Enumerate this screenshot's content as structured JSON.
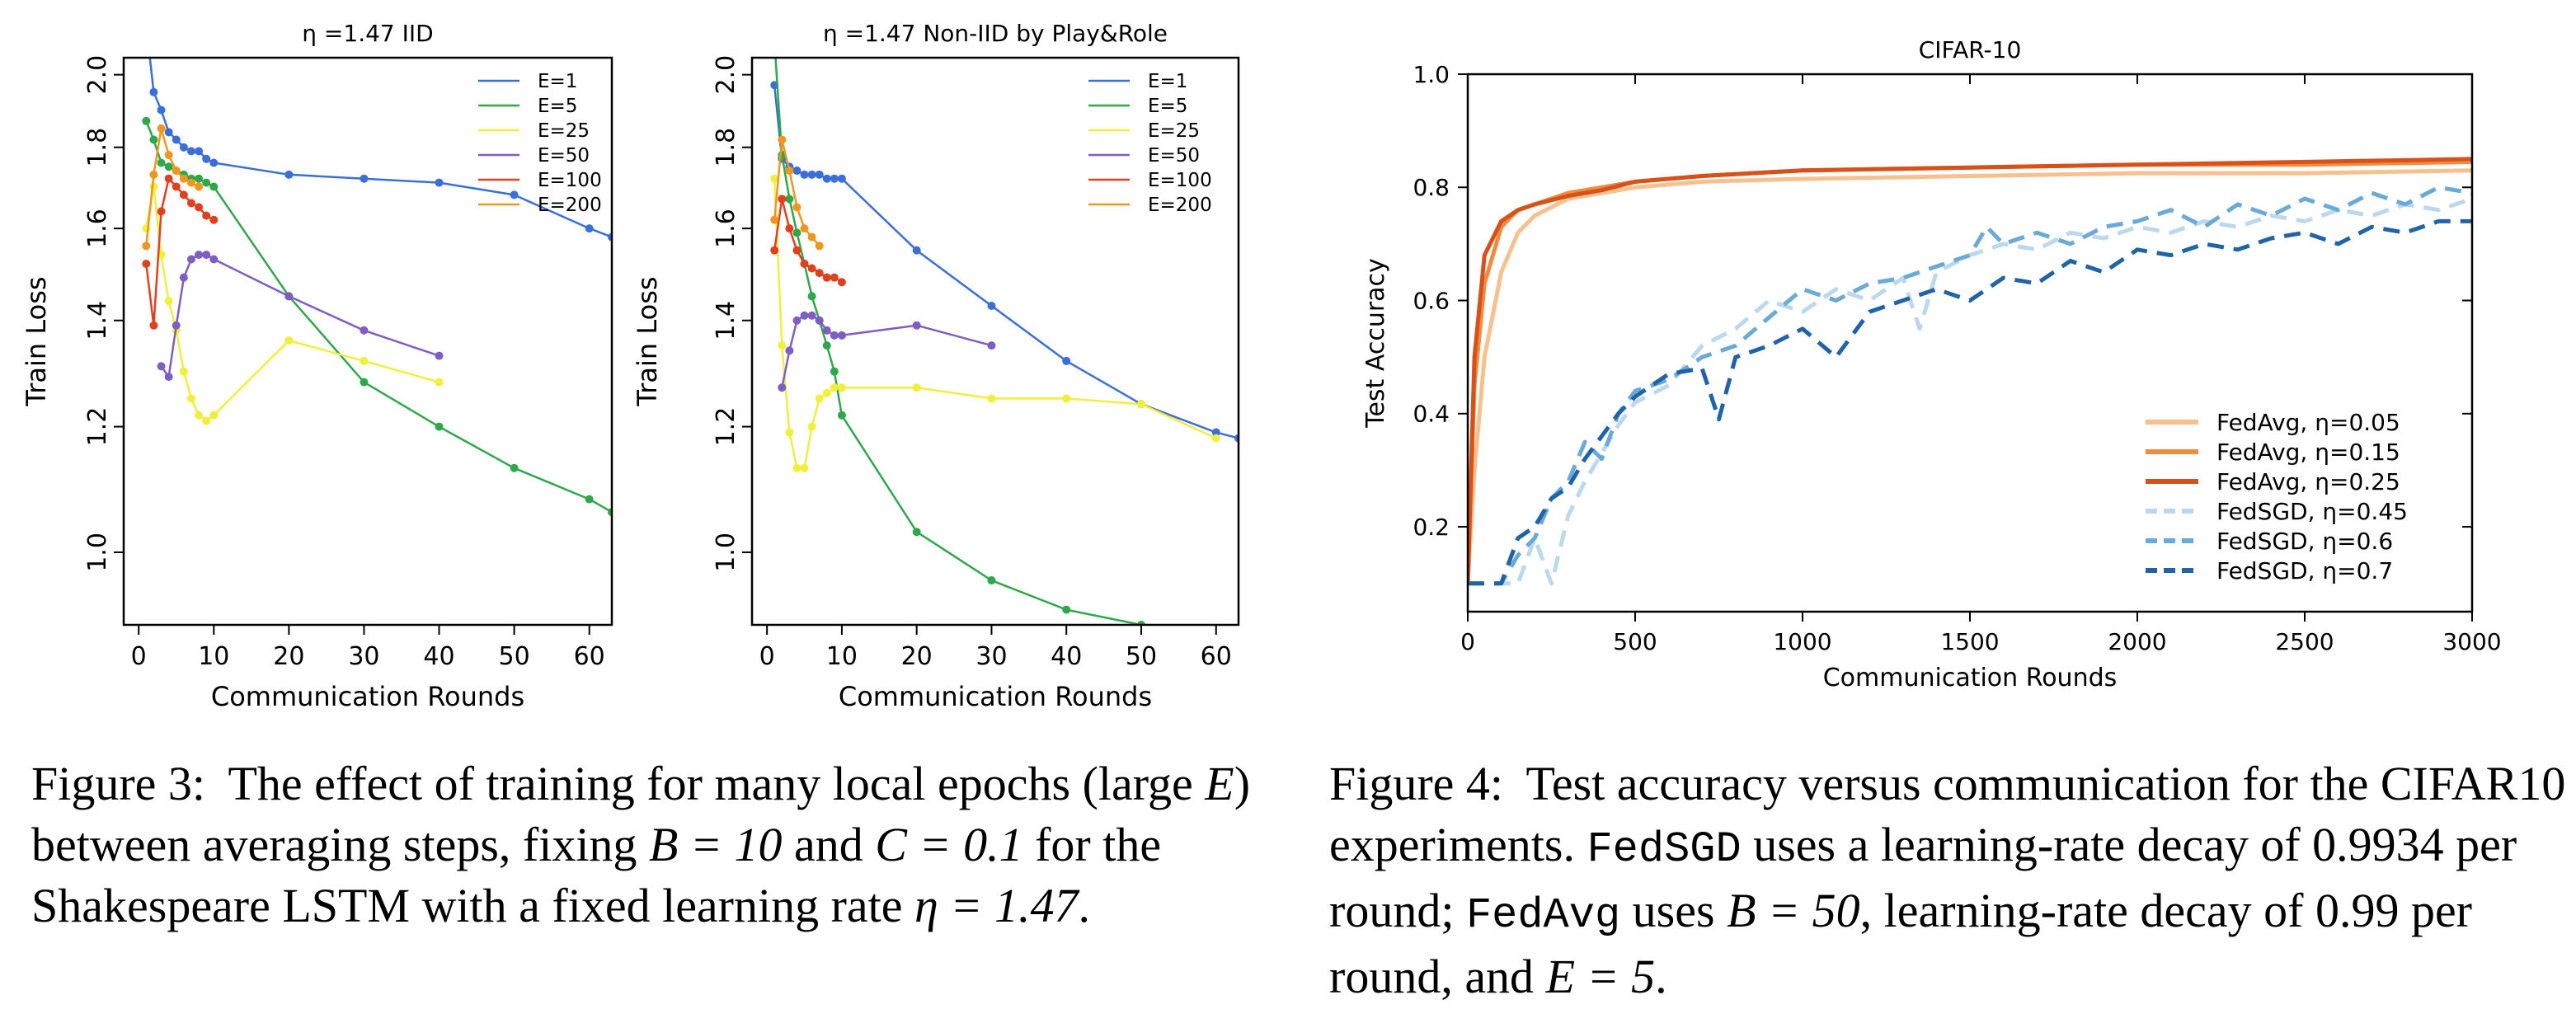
{
  "figure3": {
    "caption": {
      "label": "Figure 3:",
      "text1": " The effect of training for many local epochs (large ",
      "E": "E",
      "text2": ") between averaging steps, fixing ",
      "B_eq": "B = 10",
      "text3": " and ",
      "C_eq": "C = 0.1",
      "text4": " for the Shakespeare LSTM with a fixed learning rate ",
      "eta_eq": "η = 1.47",
      "text5": "."
    }
  },
  "figure4": {
    "caption": {
      "label": "Figure 4:",
      "text1": " Test accuracy versus communication for the CIFAR10 experiments. ",
      "fedsgd": "FedSGD",
      "text2": " uses a learning-rate decay of 0.9934 per round; ",
      "fedavg": "FedAvg",
      "text3": " uses ",
      "B_eq": "B = 50",
      "text4": ", learning-rate decay of 0.99 per round, and ",
      "E_eq": "E = 5",
      "text5": "."
    }
  },
  "chart_data": [
    {
      "type": "line",
      "title": "η =1.47 IID",
      "xlabel": "Communication Rounds",
      "ylabel": "Train Loss",
      "xlim": [
        -2,
        63
      ],
      "ylim": [
        0.9,
        2.05
      ],
      "yscale": "log",
      "xticks": [
        0,
        10,
        20,
        30,
        40,
        50,
        60
      ],
      "yticks": [
        1.0,
        1.2,
        1.4,
        1.6,
        1.8,
        2.0
      ],
      "legend_position": "top-right",
      "series": [
        {
          "name": "E=1",
          "color": "#3a6fd9",
          "x": [
            1,
            2,
            3,
            4,
            5,
            6,
            7,
            8,
            9,
            10,
            20,
            30,
            40,
            50,
            60,
            63
          ],
          "y": [
            2.15,
            1.95,
            1.9,
            1.84,
            1.82,
            1.8,
            1.79,
            1.79,
            1.77,
            1.76,
            1.73,
            1.72,
            1.71,
            1.68,
            1.6,
            1.58
          ]
        },
        {
          "name": "E=5",
          "color": "#2fa84a",
          "x": [
            1,
            2,
            3,
            4,
            5,
            6,
            7,
            8,
            9,
            10,
            20,
            30,
            40,
            50,
            60,
            63
          ],
          "y": [
            1.87,
            1.82,
            1.76,
            1.75,
            1.74,
            1.73,
            1.72,
            1.72,
            1.71,
            1.7,
            1.45,
            1.28,
            1.2,
            1.13,
            1.08,
            1.06
          ]
        },
        {
          "name": "E=25",
          "color": "#f2ef3a",
          "x": [
            1,
            2,
            3,
            4,
            5,
            6,
            7,
            8,
            9,
            10,
            20,
            30,
            40
          ],
          "y": [
            1.6,
            1.7,
            1.54,
            1.44,
            1.38,
            1.3,
            1.25,
            1.22,
            1.21,
            1.22,
            1.36,
            1.32,
            1.28
          ]
        },
        {
          "name": "E=50",
          "color": "#7e5ec4",
          "x": [
            3,
            4,
            5,
            6,
            7,
            8,
            9,
            10,
            20,
            30,
            40
          ],
          "y": [
            1.31,
            1.29,
            1.39,
            1.49,
            1.53,
            1.54,
            1.54,
            1.53,
            1.45,
            1.38,
            1.33
          ]
        },
        {
          "name": "E=100",
          "color": "#e0401e",
          "x": [
            1,
            2,
            3,
            4,
            5,
            6,
            7,
            8,
            9,
            10
          ],
          "y": [
            1.52,
            1.39,
            1.64,
            1.72,
            1.7,
            1.68,
            1.66,
            1.65,
            1.63,
            1.62
          ]
        },
        {
          "name": "E=200",
          "color": "#f0961e",
          "x": [
            1,
            2,
            3,
            4,
            5,
            6,
            7,
            8
          ],
          "y": [
            1.56,
            1.73,
            1.85,
            1.78,
            1.74,
            1.72,
            1.71,
            1.7
          ]
        }
      ]
    },
    {
      "type": "line",
      "title": "η =1.47 Non-IID by Play&Role",
      "xlabel": "Communication Rounds",
      "ylabel": "Train Loss",
      "xlim": [
        -2,
        63
      ],
      "ylim": [
        0.9,
        2.05
      ],
      "yscale": "log",
      "xticks": [
        0,
        10,
        20,
        30,
        40,
        50,
        60
      ],
      "yticks": [
        1.0,
        1.2,
        1.4,
        1.6,
        1.8,
        2.0
      ],
      "legend_position": "top-right",
      "series": [
        {
          "name": "E=1",
          "color": "#3a6fd9",
          "x": [
            1,
            2,
            3,
            4,
            5,
            6,
            7,
            8,
            9,
            10,
            20,
            30,
            40,
            50,
            60,
            63
          ],
          "y": [
            1.97,
            1.77,
            1.75,
            1.74,
            1.73,
            1.73,
            1.73,
            1.72,
            1.72,
            1.72,
            1.55,
            1.43,
            1.32,
            1.24,
            1.19,
            1.18
          ]
        },
        {
          "name": "E=5",
          "color": "#2fa84a",
          "x": [
            1,
            2,
            3,
            4,
            5,
            6,
            7,
            8,
            9,
            10,
            20,
            30,
            40,
            50
          ],
          "y": [
            2.1,
            1.78,
            1.67,
            1.59,
            1.52,
            1.45,
            1.4,
            1.35,
            1.3,
            1.22,
            1.03,
            0.96,
            0.92,
            0.9
          ]
        },
        {
          "name": "E=25",
          "color": "#f2ef3a",
          "x": [
            1,
            2,
            3,
            4,
            5,
            6,
            7,
            8,
            9,
            10,
            20,
            30,
            40,
            50,
            60
          ],
          "y": [
            1.72,
            1.35,
            1.19,
            1.13,
            1.13,
            1.2,
            1.25,
            1.26,
            1.27,
            1.27,
            1.27,
            1.25,
            1.25,
            1.24,
            1.18
          ]
        },
        {
          "name": "E=50",
          "color": "#7e5ec4",
          "x": [
            2,
            3,
            4,
            5,
            6,
            7,
            8,
            9,
            10,
            20,
            30
          ],
          "y": [
            1.27,
            1.34,
            1.4,
            1.41,
            1.41,
            1.4,
            1.38,
            1.37,
            1.37,
            1.39,
            1.35
          ]
        },
        {
          "name": "E=100",
          "color": "#e0401e",
          "x": [
            1,
            2,
            3,
            4,
            5,
            6,
            7,
            8,
            9,
            10
          ],
          "y": [
            1.55,
            1.67,
            1.6,
            1.55,
            1.52,
            1.51,
            1.5,
            1.49,
            1.49,
            1.48
          ]
        },
        {
          "name": "E=200",
          "color": "#f0961e",
          "x": [
            1,
            2,
            3,
            4,
            5,
            6,
            7
          ],
          "y": [
            1.62,
            1.82,
            1.74,
            1.65,
            1.6,
            1.58,
            1.56
          ]
        }
      ]
    },
    {
      "type": "line",
      "title": "CIFAR-10",
      "xlabel": "Communication Rounds",
      "ylabel": "Test Accuracy",
      "xlim": [
        0,
        3000
      ],
      "ylim": [
        0.05,
        1.0
      ],
      "xticks": [
        0,
        500,
        1000,
        1500,
        2000,
        2500,
        3000
      ],
      "yticks": [
        0.2,
        0.4,
        0.6,
        0.8,
        1.0
      ],
      "legend_position": "bottom-right",
      "series": [
        {
          "name": "FedAvg, η=0.05",
          "color": "#f7c08e",
          "dash": false,
          "x": [
            0,
            20,
            50,
            100,
            150,
            200,
            300,
            400,
            500,
            700,
            1000,
            1500,
            2000,
            2500,
            3000
          ],
          "y": [
            0.1,
            0.3,
            0.5,
            0.65,
            0.72,
            0.75,
            0.78,
            0.79,
            0.8,
            0.81,
            0.815,
            0.82,
            0.825,
            0.825,
            0.83
          ]
        },
        {
          "name": "FedAvg, η=0.15",
          "color": "#f08c3e",
          "dash": false,
          "x": [
            0,
            20,
            50,
            100,
            150,
            200,
            300,
            400,
            500,
            700,
            1000,
            1500,
            2000,
            2500,
            3000
          ],
          "y": [
            0.1,
            0.45,
            0.63,
            0.73,
            0.76,
            0.77,
            0.79,
            0.8,
            0.81,
            0.82,
            0.83,
            0.835,
            0.84,
            0.84,
            0.845
          ]
        },
        {
          "name": "FedAvg, η=0.25",
          "color": "#d8501a",
          "dash": false,
          "x": [
            0,
            20,
            50,
            100,
            150,
            200,
            300,
            400,
            500,
            700,
            1000,
            1500,
            2000,
            2500,
            3000
          ],
          "y": [
            0.1,
            0.5,
            0.68,
            0.74,
            0.76,
            0.77,
            0.785,
            0.795,
            0.81,
            0.82,
            0.83,
            0.835,
            0.84,
            0.845,
            0.85
          ]
        },
        {
          "name": "FedSGD, η=0.45",
          "color": "#bcd8ee",
          "dash": true,
          "x": [
            0,
            100,
            150,
            200,
            250,
            300,
            350,
            400,
            450,
            500,
            600,
            700,
            800,
            900,
            1000,
            1100,
            1200,
            1300,
            1350,
            1400,
            1500,
            1600,
            1700,
            1800,
            1900,
            2000,
            2100,
            2200,
            2300,
            2400,
            2500,
            2600,
            2700,
            2800,
            2900,
            3000
          ],
          "y": [
            0.1,
            0.1,
            0.1,
            0.18,
            0.1,
            0.22,
            0.28,
            0.33,
            0.38,
            0.42,
            0.45,
            0.52,
            0.55,
            0.6,
            0.58,
            0.62,
            0.6,
            0.64,
            0.55,
            0.65,
            0.68,
            0.7,
            0.69,
            0.72,
            0.71,
            0.73,
            0.72,
            0.74,
            0.73,
            0.75,
            0.74,
            0.76,
            0.75,
            0.77,
            0.76,
            0.78
          ]
        },
        {
          "name": "FedSGD, η=0.6",
          "color": "#6aaad8",
          "dash": true,
          "x": [
            0,
            100,
            150,
            200,
            250,
            300,
            350,
            400,
            450,
            500,
            600,
            700,
            800,
            900,
            1000,
            1100,
            1200,
            1300,
            1400,
            1500,
            1550,
            1600,
            1700,
            1800,
            1900,
            2000,
            2100,
            2200,
            2300,
            2400,
            2500,
            2600,
            2700,
            2800,
            2900,
            3000
          ],
          "y": [
            0.1,
            0.1,
            0.15,
            0.18,
            0.25,
            0.28,
            0.35,
            0.32,
            0.4,
            0.44,
            0.46,
            0.5,
            0.52,
            0.57,
            0.62,
            0.6,
            0.63,
            0.64,
            0.66,
            0.68,
            0.73,
            0.7,
            0.72,
            0.7,
            0.73,
            0.74,
            0.76,
            0.73,
            0.77,
            0.75,
            0.78,
            0.76,
            0.79,
            0.77,
            0.8,
            0.79
          ]
        },
        {
          "name": "FedSGD, η=0.7",
          "color": "#1f64a8",
          "dash": true,
          "x": [
            0,
            100,
            150,
            200,
            250,
            300,
            350,
            400,
            450,
            500,
            600,
            700,
            750,
            800,
            900,
            1000,
            1100,
            1200,
            1300,
            1400,
            1500,
            1600,
            1700,
            1800,
            1900,
            2000,
            2100,
            2200,
            2300,
            2400,
            2500,
            2600,
            2700,
            2800,
            2900,
            3000
          ],
          "y": [
            0.1,
            0.1,
            0.18,
            0.2,
            0.25,
            0.27,
            0.32,
            0.36,
            0.4,
            0.43,
            0.47,
            0.48,
            0.39,
            0.5,
            0.52,
            0.55,
            0.5,
            0.58,
            0.6,
            0.62,
            0.6,
            0.64,
            0.63,
            0.67,
            0.65,
            0.69,
            0.68,
            0.7,
            0.69,
            0.71,
            0.72,
            0.7,
            0.73,
            0.72,
            0.74,
            0.74
          ]
        }
      ]
    }
  ]
}
